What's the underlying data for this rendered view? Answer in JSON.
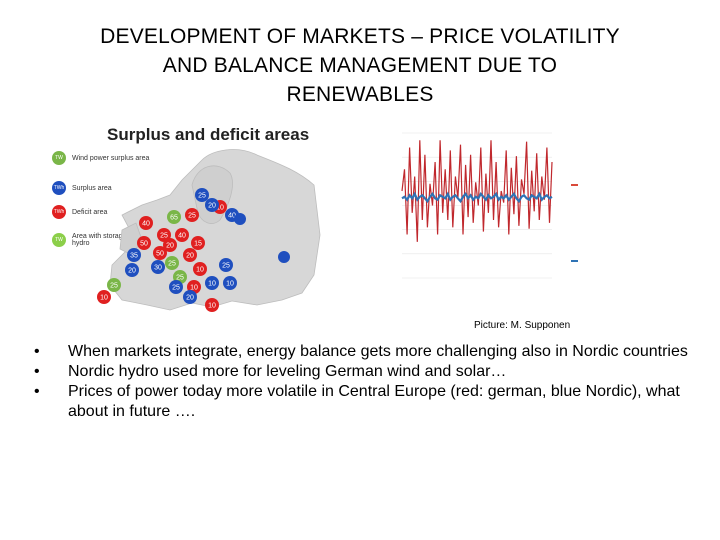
{
  "slide": {
    "title_lines": [
      "DEVELOPMENT OF MARKETS – PRICE  VOLATILITY",
      "AND BALANCE MANAGEMENT DUE TO",
      "RENEWABLES"
    ],
    "credit": "Picture: M. Supponen",
    "bullets": [
      "When markets integrate, energy balance gets more challenging also in Nordic countries",
      "Nordic hydro used more for leveling German wind and solar…",
      "Prices of power today more volatile in Central Europe (red: german, blue Nordic), what about in future …."
    ]
  },
  "map": {
    "heading": "Surplus and deficit areas",
    "legend": [
      {
        "badge": "TW",
        "label": "Wind power surplus area",
        "color": "#7ab648"
      },
      {
        "badge": "TWh",
        "label": "Surplus area",
        "color": "#1f4fbf"
      },
      {
        "badge": "TWh",
        "label": "Deficit area",
        "color": "#e02020"
      },
      {
        "badge": "TW",
        "label": "Area with storage hydro",
        "color": "#8ccf4a"
      }
    ],
    "markers": [
      {
        "v": "25",
        "c": "#1f4fbf"
      },
      {
        "v": "10",
        "c": "#e02020"
      },
      {
        "v": "20",
        "c": "#1f4fbf"
      },
      {
        "v": "25",
        "c": "#e02020"
      },
      {
        "v": "65",
        "c": "#7ab648"
      },
      {
        "v": "40",
        "c": "#e02020"
      },
      {
        "v": "50",
        "c": "#e02020"
      },
      {
        "v": "25",
        "c": "#e02020"
      },
      {
        "v": "20",
        "c": "#e02020"
      },
      {
        "v": "40",
        "c": "#1f4fbf"
      },
      {
        "v": "50",
        "c": "#e02020"
      },
      {
        "v": "35",
        "c": "#1f4fbf"
      },
      {
        "v": "20",
        "c": "#1f4fbf"
      },
      {
        "v": "30",
        "c": "#1f4fbf"
      },
      {
        "v": "25",
        "c": "#7ab648"
      },
      {
        "v": "25",
        "c": "#7ab648"
      },
      {
        "v": "10",
        "c": "#e02020"
      },
      {
        "v": "20",
        "c": "#e02020"
      },
      {
        "v": "15",
        "c": "#e02020"
      },
      {
        "v": "40",
        "c": "#e02020"
      },
      {
        "v": "25",
        "c": "#1f4fbf"
      },
      {
        "v": "10",
        "c": "#1f4fbf"
      },
      {
        "v": "10",
        "c": "#e02020"
      },
      {
        "v": "25",
        "c": "#1f4fbf"
      },
      {
        "v": "10",
        "c": "#1f4fbf"
      },
      {
        "v": "10",
        "c": "#e02020"
      },
      {
        "v": "20",
        "c": "#1f4fbf"
      },
      {
        "v": "25",
        "c": "#7ab648"
      },
      {
        "v": "10",
        "c": "#e02020"
      }
    ]
  },
  "chart_data": {
    "type": "line",
    "series": [
      {
        "values": [
          60,
          75,
          30,
          90,
          45,
          70,
          25,
          95,
          40,
          85,
          35,
          65,
          50,
          80,
          30,
          95,
          45,
          75,
          40,
          88,
          35,
          70,
          55,
          92,
          30,
          78,
          42,
          85,
          38,
          66,
          50,
          90,
          32,
          72,
          45,
          95,
          40,
          80,
          35,
          60,
          52,
          88,
          30,
          76,
          44,
          84,
          36,
          68,
          58,
          94,
          34,
          74,
          46,
          86,
          40,
          70,
          54,
          90,
          38,
          80
        ]
      },
      {
        "values": [
          55,
          56,
          54,
          57,
          55,
          58,
          54,
          56,
          57,
          55,
          53,
          56,
          58,
          55,
          54,
          57,
          56,
          55,
          58,
          54,
          56,
          57,
          55,
          53,
          56,
          58,
          55,
          57,
          54,
          56,
          55,
          58,
          56,
          54,
          57,
          55,
          56,
          58,
          54,
          56,
          55,
          57,
          54,
          56,
          58,
          55,
          53,
          56,
          57,
          55,
          54,
          57,
          56,
          55,
          58,
          54,
          56,
          57,
          55,
          56
        ]
      }
    ],
    "colors": {
      "german": "#c0282d",
      "nordic": "#2f73b5",
      "dash": "#d94a3a"
    }
  }
}
